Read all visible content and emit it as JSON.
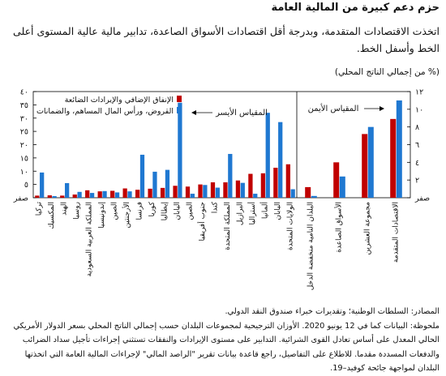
{
  "title": "حزم دعم كبيرة من المالية العامة",
  "subtitle": "اتخذت الاقتصادات المتقدمة، وبدرجة أقل اقتصادات الأسواق الصاعدة، تدابير مالية عالية المستوى أعلى الخط وأسفل الخط.",
  "unit_note": "(% من إجمالي الناتج المحلي)",
  "colors": {
    "red": "#c00000",
    "blue": "#1f78d1"
  },
  "chart_data": {
    "type": "bar",
    "countries_panel": {
      "categories": [
        "تركيا",
        "المكسيك",
        "الهند",
        "روسيا",
        "المملكة العربية السعودية",
        "إندونيسيا",
        "الصين",
        "الأرجنتين",
        "فرنسا",
        "كوريا",
        "إيطاليا",
        "اليابان",
        "الصين",
        "جنوب أفريقيا",
        "كندا",
        "المملكة المتحدة",
        "البرازيل",
        "أستراليا",
        "ألمانيا",
        "اليابان",
        "الولايات المتحدة"
      ],
      "series": [
        {
          "name": "الإنفاق الإضافي والإيرادات الضائعة",
          "values": [
            0.8,
            0.9,
            0.8,
            1.2,
            2.8,
            2.4,
            2.6,
            3.5,
            3.0,
            3.4,
            3.7,
            4.5,
            4.2,
            5.0,
            5.8,
            5.8,
            6.5,
            9.0,
            9.2,
            11.3,
            12.6
          ]
        },
        {
          "name": "القروض، ورأس المال المساهم، والضمانات",
          "values": [
            9.5,
            0.6,
            5.5,
            2.2,
            1.8,
            2.5,
            2.0,
            2.4,
            16.2,
            9.8,
            10.5,
            35.8,
            1.5,
            4.8,
            3.8,
            16.5,
            5.6,
            1.5,
            32.0,
            28.5,
            3.2
          ]
        }
      ],
      "ylim": [
        0,
        40
      ],
      "ytick_labels": [
        "صفر",
        "٥",
        "١٠",
        "١٥",
        "٢٠",
        "٢٥",
        "٣٠",
        "٣٥",
        "٤٠"
      ],
      "axis_label": "المقياس الأيسر"
    },
    "groups_panel": {
      "categories": [
        "البلدان النامية منخفضة الدخل",
        "الأسواق الصاعدة",
        "مجموعة العشرين",
        "الاقتصادات المتقدمة"
      ],
      "series": [
        {
          "name": "الإنفاق الإضافي والإيرادات الضائعة",
          "values": [
            1.2,
            4.0,
            7.2,
            8.9
          ]
        },
        {
          "name": "القروض، ورأس المال المساهم، والضمانات",
          "values": [
            0.2,
            2.4,
            8.0,
            11.0
          ]
        }
      ],
      "ylim": [
        0,
        12
      ],
      "ytick_labels": [
        "صفر",
        "٢",
        "٤",
        "٦",
        "٨",
        "١٠",
        "١٢"
      ],
      "axis_label": "المقياس الأيمن"
    }
  },
  "footer": {
    "sources": "المصادر: السلطات الوطنية؛ وتقديرات خبراء صندوق النقد الدولي.",
    "note": "ملحوظة: البيانات كما في 12 يونيو 2020. الأوزان الترجيحية لمجموعات البلدان حسب إجمالي الناتج المحلي بسعر الدولار الأمريكي الحالي المعدل على أساس تعادل القوى الشرائية. التدابير على مستوى الإيرادات والنفقات تستثني إجراءات تأجيل سداد الضرائب والدفعات المسددة مقدما. للاطلاع على التفاصيل، راجع قاعدة بيانات تقرير \"الراصد المالي\" لإجراءات المالية العامة التي اتخذتها البلدان لمواجهة جائحة كوفيد–19."
  }
}
